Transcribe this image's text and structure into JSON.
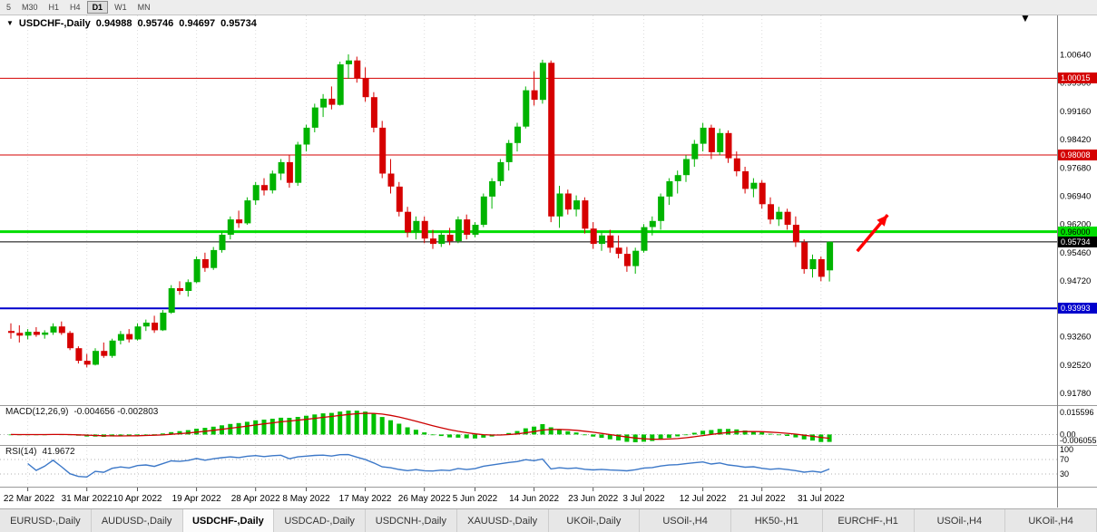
{
  "toolbar": {
    "timeframes": [
      "5",
      "M30",
      "H1",
      "H4",
      "D1",
      "W1",
      "MN"
    ],
    "active": "D1"
  },
  "chart_data": {
    "type": "candlestick",
    "title": "USDCHF-,Daily",
    "ohlc_display": {
      "open": "0.94988",
      "high": "0.95746",
      "low": "0.94697",
      "close": "0.95734"
    },
    "up_color": "#00b300",
    "down_color": "#d60000",
    "price_axis": {
      "top_value": 1.0064,
      "ticks": [
        "1.00640",
        "0.99900",
        "0.99160",
        "0.98420",
        "0.97680",
        "0.96940",
        "0.96200",
        "0.95460",
        "0.94720",
        "0.93980",
        "0.93260",
        "0.92520",
        "0.91780"
      ]
    },
    "date_ticks": [
      {
        "i": 2,
        "label": "22 Mar 2022"
      },
      {
        "i": 9,
        "label": "31 Mar 2022"
      },
      {
        "i": 15,
        "label": "10 Apr 2022"
      },
      {
        "i": 22,
        "label": "19 Apr 2022"
      },
      {
        "i": 29,
        "label": "28 Apr 2022"
      },
      {
        "i": 35,
        "label": "8 May 2022"
      },
      {
        "i": 42,
        "label": "17 May 2022"
      },
      {
        "i": 49,
        "label": "26 May 2022"
      },
      {
        "i": 55,
        "label": "5 Jun 2022"
      },
      {
        "i": 62,
        "label": "14 Jun 2022"
      },
      {
        "i": 69,
        "label": "23 Jun 2022"
      },
      {
        "i": 75,
        "label": "3 Jul 2022"
      },
      {
        "i": 82,
        "label": "12 Jul 2022"
      },
      {
        "i": 89,
        "label": "21 Jul 2022"
      },
      {
        "i": 96,
        "label": "31 Jul 2022"
      }
    ],
    "levels": [
      {
        "price": 1.00015,
        "label": "1.00015",
        "color": "#d40000",
        "width": 1,
        "text": "#ffffff"
      },
      {
        "price": 0.98008,
        "label": "0.98008",
        "color": "#d40000",
        "width": 1,
        "text": "#ffffff"
      },
      {
        "price": 0.96,
        "label": "0.96000",
        "color": "#00dd00",
        "width": 3,
        "text": "#000000"
      },
      {
        "price": 0.95734,
        "label": "0.95734",
        "color": "#000000",
        "width": 1,
        "text": "#ffffff"
      },
      {
        "price": 0.93993,
        "label": "0.93993",
        "color": "#0000cc",
        "width": 2,
        "text": "#ffffff"
      }
    ],
    "arrow": {
      "from": {
        "index": 100.3,
        "price": 0.9549
      },
      "to": {
        "index": 103.9,
        "price": 0.9644
      },
      "color": "#ff0000"
    },
    "indicators": {
      "macd": {
        "label": "MACD(12,26,9)",
        "values_text": "-0.004656 -0.002803",
        "axis_labels": [
          "0.015596",
          "0.00",
          "-0.006055"
        ],
        "fast": 12,
        "slow": 26,
        "signal": 9,
        "hist_color": "#00c000",
        "signal_color": "#cc0000"
      },
      "rsi": {
        "label": "RSI(14)",
        "value_text": "41.9672",
        "axis_labels": [
          "100",
          "70",
          "30"
        ],
        "period": 14,
        "levels": [
          70,
          30
        ],
        "line_color": "#3c78c8"
      }
    },
    "candles": [
      [
        0.934,
        0.936,
        0.932,
        0.9335
      ],
      [
        0.9335,
        0.9355,
        0.931,
        0.9328
      ],
      [
        0.9328,
        0.9345,
        0.9318,
        0.9338
      ],
      [
        0.9338,
        0.935,
        0.9325,
        0.933
      ],
      [
        0.933,
        0.9342,
        0.932,
        0.9336
      ],
      [
        0.9336,
        0.936,
        0.933,
        0.9352
      ],
      [
        0.9352,
        0.9365,
        0.933,
        0.9335
      ],
      [
        0.9335,
        0.934,
        0.929,
        0.9295
      ],
      [
        0.9295,
        0.93,
        0.9255,
        0.9262
      ],
      [
        0.9262,
        0.928,
        0.9245,
        0.9252
      ],
      [
        0.9252,
        0.9295,
        0.925,
        0.9288
      ],
      [
        0.9288,
        0.931,
        0.927,
        0.9275
      ],
      [
        0.9275,
        0.932,
        0.927,
        0.9315
      ],
      [
        0.9315,
        0.934,
        0.9305,
        0.9332
      ],
      [
        0.9332,
        0.9345,
        0.931,
        0.9318
      ],
      [
        0.9318,
        0.936,
        0.9315,
        0.9352
      ],
      [
        0.9352,
        0.937,
        0.934,
        0.9362
      ],
      [
        0.9362,
        0.938,
        0.9335,
        0.9342
      ],
      [
        0.9342,
        0.9395,
        0.934,
        0.9388
      ],
      [
        0.9388,
        0.946,
        0.9385,
        0.9452
      ],
      [
        0.9452,
        0.947,
        0.9435,
        0.9445
      ],
      [
        0.9445,
        0.9475,
        0.943,
        0.9468
      ],
      [
        0.9468,
        0.9535,
        0.9465,
        0.9528
      ],
      [
        0.9528,
        0.9545,
        0.9495,
        0.9505
      ],
      [
        0.9505,
        0.956,
        0.95,
        0.9552
      ],
      [
        0.9552,
        0.96,
        0.9545,
        0.9592
      ],
      [
        0.9592,
        0.964,
        0.958,
        0.9632
      ],
      [
        0.9632,
        0.9655,
        0.961,
        0.9622
      ],
      [
        0.9622,
        0.969,
        0.9618,
        0.9682
      ],
      [
        0.9682,
        0.973,
        0.967,
        0.9722
      ],
      [
        0.9722,
        0.974,
        0.9695,
        0.9708
      ],
      [
        0.9708,
        0.976,
        0.97,
        0.9752
      ],
      [
        0.9752,
        0.979,
        0.9735,
        0.9782
      ],
      [
        0.9782,
        0.98,
        0.9715,
        0.9728
      ],
      [
        0.9728,
        0.9835,
        0.972,
        0.9828
      ],
      [
        0.9828,
        0.988,
        0.981,
        0.9872
      ],
      [
        0.9872,
        0.9935,
        0.986,
        0.9925
      ],
      [
        0.9925,
        0.996,
        0.99,
        0.9948
      ],
      [
        0.9948,
        0.998,
        0.992,
        0.9932
      ],
      [
        0.9932,
        1.0045,
        0.993,
        1.0038
      ],
      [
        1.0038,
        1.0064,
        1.0,
        1.0048
      ],
      [
        1.0048,
        1.0058,
        0.999,
        1.0002
      ],
      [
        1.0002,
        1.003,
        0.994,
        0.9952
      ],
      [
        0.9952,
        0.9965,
        0.986,
        0.9872
      ],
      [
        0.9872,
        0.989,
        0.974,
        0.9752
      ],
      [
        0.9752,
        0.979,
        0.97,
        0.9718
      ],
      [
        0.9718,
        0.973,
        0.964,
        0.9652
      ],
      [
        0.9652,
        0.9665,
        0.9585,
        0.9598
      ],
      [
        0.9598,
        0.964,
        0.958,
        0.9628
      ],
      [
        0.9628,
        0.964,
        0.957,
        0.9582
      ],
      [
        0.9582,
        0.9605,
        0.9555,
        0.9568
      ],
      [
        0.9568,
        0.96,
        0.956,
        0.9592
      ],
      [
        0.9592,
        0.961,
        0.9565,
        0.9575
      ],
      [
        0.9575,
        0.964,
        0.957,
        0.9632
      ],
      [
        0.9632,
        0.9645,
        0.958,
        0.9592
      ],
      [
        0.9592,
        0.9625,
        0.9585,
        0.9618
      ],
      [
        0.9618,
        0.97,
        0.9612,
        0.9692
      ],
      [
        0.9692,
        0.974,
        0.966,
        0.9732
      ],
      [
        0.9732,
        0.979,
        0.972,
        0.9782
      ],
      [
        0.9782,
        0.984,
        0.976,
        0.9832
      ],
      [
        0.9832,
        0.9885,
        0.981,
        0.9875
      ],
      [
        0.9875,
        0.998,
        0.987,
        0.997
      ],
      [
        0.997,
        1.002,
        0.993,
        0.9945
      ],
      [
        0.9945,
        1.005,
        0.9935,
        1.0042
      ],
      [
        1.0042,
        1.0048,
        0.9625,
        0.964
      ],
      [
        0.964,
        0.972,
        0.961,
        0.97
      ],
      [
        0.97,
        0.971,
        0.9645,
        0.9658
      ],
      [
        0.9658,
        0.9695,
        0.964,
        0.9682
      ],
      [
        0.9682,
        0.969,
        0.9595,
        0.9608
      ],
      [
        0.9608,
        0.9625,
        0.9555,
        0.9568
      ],
      [
        0.9568,
        0.96,
        0.955,
        0.959
      ],
      [
        0.959,
        0.9605,
        0.9545,
        0.9558
      ],
      [
        0.9558,
        0.959,
        0.953,
        0.9542
      ],
      [
        0.9542,
        0.956,
        0.9495,
        0.951
      ],
      [
        0.951,
        0.9558,
        0.949,
        0.955
      ],
      [
        0.955,
        0.962,
        0.9545,
        0.9612
      ],
      [
        0.9612,
        0.964,
        0.959,
        0.9628
      ],
      [
        0.9628,
        0.97,
        0.9605,
        0.9692
      ],
      [
        0.9692,
        0.974,
        0.967,
        0.9732
      ],
      [
        0.9732,
        0.976,
        0.97,
        0.9748
      ],
      [
        0.9748,
        0.98,
        0.973,
        0.979
      ],
      [
        0.979,
        0.984,
        0.977,
        0.983
      ],
      [
        0.983,
        0.9885,
        0.981,
        0.9872
      ],
      [
        0.9872,
        0.988,
        0.979,
        0.9808
      ],
      [
        0.9808,
        0.987,
        0.98,
        0.9858
      ],
      [
        0.9858,
        0.9865,
        0.978,
        0.9792
      ],
      [
        0.9792,
        0.981,
        0.9745,
        0.9758
      ],
      [
        0.9758,
        0.977,
        0.97,
        0.9712
      ],
      [
        0.9712,
        0.974,
        0.969,
        0.9728
      ],
      [
        0.9728,
        0.9735,
        0.966,
        0.9672
      ],
      [
        0.9672,
        0.969,
        0.962,
        0.9632
      ],
      [
        0.9632,
        0.9665,
        0.9615,
        0.9652
      ],
      [
        0.9652,
        0.966,
        0.9605,
        0.9618
      ],
      [
        0.9618,
        0.964,
        0.956,
        0.9572
      ],
      [
        0.9572,
        0.958,
        0.949,
        0.9502
      ],
      [
        0.9502,
        0.954,
        0.948,
        0.9528
      ],
      [
        0.9528,
        0.9535,
        0.947,
        0.9482
      ],
      [
        0.94988,
        0.95746,
        0.94697,
        0.95734
      ]
    ]
  },
  "tabs": {
    "active_index": 2,
    "items": [
      {
        "label": "EURUSD-,Daily"
      },
      {
        "label": "AUDUSD-,Daily"
      },
      {
        "label": "USDCHF-,Daily"
      },
      {
        "label": "USDCAD-,Daily"
      },
      {
        "label": "USDCNH-,Daily"
      },
      {
        "label": "XAUUSD-,Daily"
      },
      {
        "label": "UKOil-,Daily"
      },
      {
        "label": "USOil-,H4"
      },
      {
        "label": "HK50-,H1"
      },
      {
        "label": "EURCHF-,H1"
      },
      {
        "label": "USOil-,H4"
      },
      {
        "label": "UKOil-,H4"
      }
    ]
  }
}
